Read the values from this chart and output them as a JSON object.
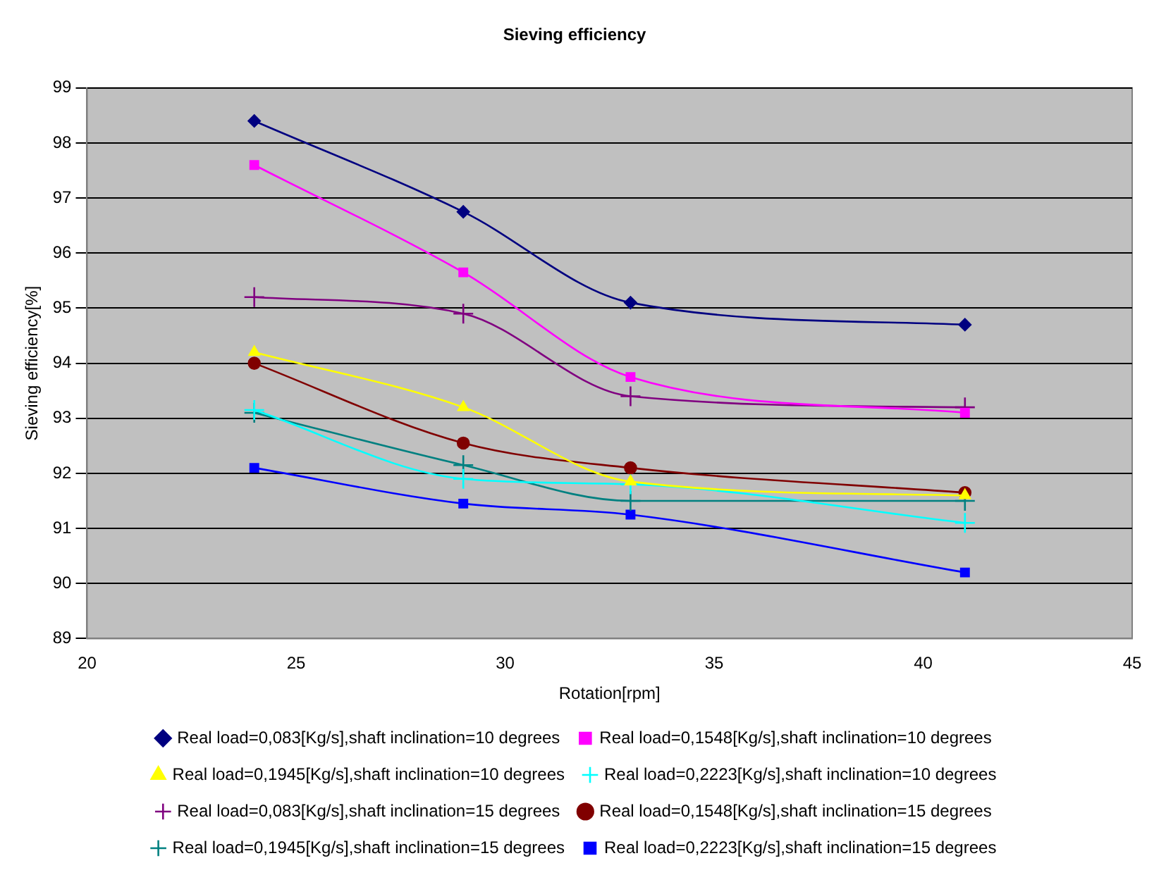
{
  "chart_data": {
    "type": "line",
    "title": "Sieving efficiency",
    "xlabel": "Rotation[rpm]",
    "ylabel": "Sieving efficiency[%]",
    "x": [
      24,
      29,
      33,
      41
    ],
    "xlim": [
      20,
      45
    ],
    "xticks": [
      20,
      25,
      30,
      35,
      40,
      45
    ],
    "ylim": [
      89,
      99
    ],
    "yticks": [
      89,
      90,
      91,
      92,
      93,
      94,
      95,
      96,
      97,
      98,
      99
    ],
    "grid": "y",
    "legend": "bottom",
    "line_style": "solid",
    "series": [
      {
        "name": "Real load=0,083[Kg/s],shaft inclination=10 degrees",
        "color": "#000080",
        "marker": "diamond",
        "values": [
          98.4,
          96.75,
          95.1,
          94.7
        ]
      },
      {
        "name": "Real load=0,1548[Kg/s],shaft inclination=10 degrees",
        "color": "#ff00ff",
        "marker": "square",
        "values": [
          97.6,
          95.65,
          93.75,
          93.1
        ]
      },
      {
        "name": "Real load=0,1945[Kg/s],shaft inclination=10 degrees",
        "color": "#ffff00",
        "marker": "triangle",
        "values": [
          94.2,
          93.2,
          91.85,
          91.6
        ]
      },
      {
        "name": "Real load=0,2223[Kg/s],shaft inclination=10 degrees",
        "color": "#00ffff",
        "marker": "cross",
        "values": [
          93.15,
          91.9,
          91.8,
          91.1
        ]
      },
      {
        "name": "Real load=0,083[Kg/s],shaft inclination=15 degrees",
        "color": "#800080",
        "marker": "cross",
        "values": [
          95.2,
          94.9,
          93.4,
          93.2
        ]
      },
      {
        "name": "Real load=0,1548[Kg/s],shaft inclination=15 degrees",
        "color": "#800000",
        "marker": "circle",
        "values": [
          94.0,
          92.55,
          92.1,
          91.65
        ]
      },
      {
        "name": "Real load=0,1945[Kg/s],shaft inclination=15 degrees",
        "color": "#008080",
        "marker": "cross",
        "values": [
          93.1,
          92.15,
          91.5,
          91.5
        ]
      },
      {
        "name": "Real load=0,2223[Kg/s],shaft inclination=15 degrees",
        "color": "#0000ff",
        "marker": "square",
        "values": [
          92.1,
          91.45,
          91.25,
          90.2
        ]
      }
    ]
  }
}
